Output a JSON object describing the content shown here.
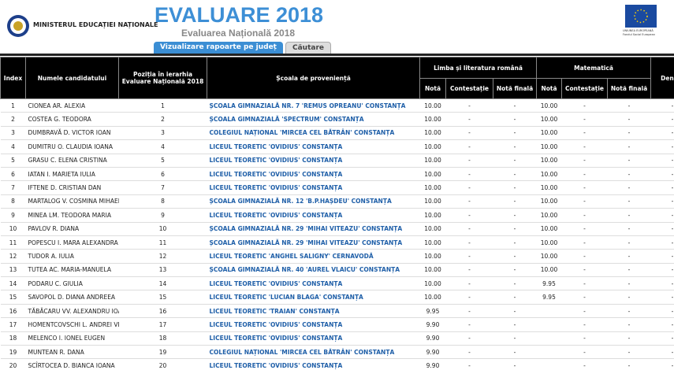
{
  "header": {
    "ministry": "MINISTERUL EDUCAȚIEI NAȚIONALE",
    "title": "EVALUARE 2018",
    "subtitle": "Evaluarea Națională 2018",
    "eu_line1": "UNIUNEA EUROPEANĂ",
    "eu_line2": "Fondul Social European"
  },
  "tabs": [
    "Vizualizare rapoarte pe județ",
    "Căutare"
  ],
  "table": {
    "columns": [
      "Index",
      "Numele candidatului",
      "Poziția în ierarhia Evaluare Națională 2018",
      "Școala de proveniență"
    ],
    "groups": [
      "Limba și literatura română",
      "Matematică"
    ],
    "subcolumns": [
      "Notă",
      "Contestație",
      "Notă finală",
      "Notă",
      "Contestație",
      "Notă finală"
    ],
    "last_column": "Denum",
    "rows": [
      [
        "1",
        "CIONEA AR. ALEXIA",
        "1",
        "ȘCOALA GIMNAZIALĂ NR. 7 'REMUS OPREANU' CONSTANȚA",
        "10.00",
        "-",
        "-",
        "10.00",
        "-",
        "-",
        "-"
      ],
      [
        "2",
        "COSTEA G. TEODORA",
        "2",
        "ȘCOALA GIMNAZIALĂ 'SPECTRUM' CONSTANȚA",
        "10.00",
        "-",
        "-",
        "10.00",
        "-",
        "-",
        "-"
      ],
      [
        "3",
        "DUMBRAVĂ D. VICTOR IOAN",
        "3",
        "COLEGIUL NAȚIONAL 'MIRCEA CEL BĂTRÂN' CONSTANȚA",
        "10.00",
        "-",
        "-",
        "10.00",
        "-",
        "-",
        "-"
      ],
      [
        "4",
        "DUMITRU O. CLAUDIA IOANA",
        "4",
        "LICEUL TEORETIC 'OVIDIUS' CONSTANȚA",
        "10.00",
        "-",
        "-",
        "10.00",
        "-",
        "-",
        "-"
      ],
      [
        "5",
        "GRASU C. ELENA CRISTINA",
        "5",
        "LICEUL TEORETIC 'OVIDIUS' CONSTANȚA",
        "10.00",
        "-",
        "-",
        "10.00",
        "-",
        "-",
        "-"
      ],
      [
        "6",
        "IATAN I. MARIETA IULIA",
        "6",
        "LICEUL TEORETIC 'OVIDIUS' CONSTANȚA",
        "10.00",
        "-",
        "-",
        "10.00",
        "-",
        "-",
        "-"
      ],
      [
        "7",
        "IFTENE D. CRISTIAN DAN",
        "7",
        "LICEUL TEORETIC 'OVIDIUS' CONSTANȚA",
        "10.00",
        "-",
        "-",
        "10.00",
        "-",
        "-",
        "-"
      ],
      [
        "8",
        "MARTALOG V. COSMINA MIHAELA",
        "8",
        "ȘCOALA GIMNAZIALĂ NR. 12 'B.P.HAȘDEU' CONSTANȚA",
        "10.00",
        "-",
        "-",
        "10.00",
        "-",
        "-",
        "-"
      ],
      [
        "9",
        "MINEA LM. TEODORA MARIA",
        "9",
        "LICEUL TEORETIC 'OVIDIUS' CONSTANȚA",
        "10.00",
        "-",
        "-",
        "10.00",
        "-",
        "-",
        "-"
      ],
      [
        "10",
        "PAVLOV R. DIANA",
        "10",
        "ȘCOALA GIMNAZIALĂ NR. 29 'MIHAI VITEAZU' CONSTANȚA",
        "10.00",
        "-",
        "-",
        "10.00",
        "-",
        "-",
        "-"
      ],
      [
        "11",
        "POPESCU I. MARA ALEXANDRA",
        "11",
        "ȘCOALA GIMNAZIALĂ NR. 29 'MIHAI VITEAZU' CONSTANȚA",
        "10.00",
        "-",
        "-",
        "10.00",
        "-",
        "-",
        "-"
      ],
      [
        "12",
        "TUDOR A. IULIA",
        "12",
        "LICEUL TEORETIC 'ANGHEL SALIGNY' CERNAVODĂ",
        "10.00",
        "-",
        "-",
        "10.00",
        "-",
        "-",
        "-"
      ],
      [
        "13",
        "TUTEA AC. MARIA-MANUELA",
        "13",
        "ȘCOALA GIMNAZIALĂ NR. 40 'AUREL VLAICU' CONSTANȚA",
        "10.00",
        "-",
        "-",
        "10.00",
        "-",
        "-",
        "-"
      ],
      [
        "14",
        "PODARU C. GIULIA",
        "14",
        "LICEUL TEORETIC 'OVIDIUS' CONSTANȚA",
        "10.00",
        "-",
        "-",
        "9.95",
        "-",
        "-",
        "-"
      ],
      [
        "15",
        "SAVOPOL D. DIANA ANDREEA",
        "15",
        "LICEUL TEORETIC 'LUCIAN BLAGA' CONSTANȚA",
        "10.00",
        "-",
        "-",
        "9.95",
        "-",
        "-",
        "-"
      ],
      [
        "16",
        "TĂBĂCARU VV. ALEXANDRU IOAN",
        "16",
        "LICEUL TEORETIC 'TRAIAN' CONSTANȚA",
        "9.95",
        "-",
        "-",
        null,
        "-",
        "-",
        "-"
      ],
      [
        "17",
        "HOMENTCOVSCHI L. ANDREI VLAD",
        "17",
        "LICEUL TEORETIC 'OVIDIUS' CONSTANȚA",
        "9.90",
        "-",
        "-",
        null,
        "-",
        "-",
        "-"
      ],
      [
        "18",
        "MELENCO I. IONEL EUGEN",
        "18",
        "LICEUL TEORETIC 'OVIDIUS' CONSTANȚA",
        "9.90",
        "-",
        "-",
        null,
        "-",
        "-",
        "-"
      ],
      [
        "19",
        "MUNTEAN R. DANA",
        "19",
        "COLEGIUL NAȚIONAL 'MIRCEA CEL BĂTRÂN' CONSTANȚA",
        "9.90",
        "-",
        "-",
        null,
        "-",
        "-",
        "-"
      ],
      [
        "20",
        "SCÎRTOCEA D. BIANCA IOANA",
        "20",
        "LICEUL TEORETIC 'OVIDIUS' CONSTANȚA",
        "9.90",
        "-",
        "-",
        null,
        "-",
        "-",
        "-"
      ]
    ]
  }
}
